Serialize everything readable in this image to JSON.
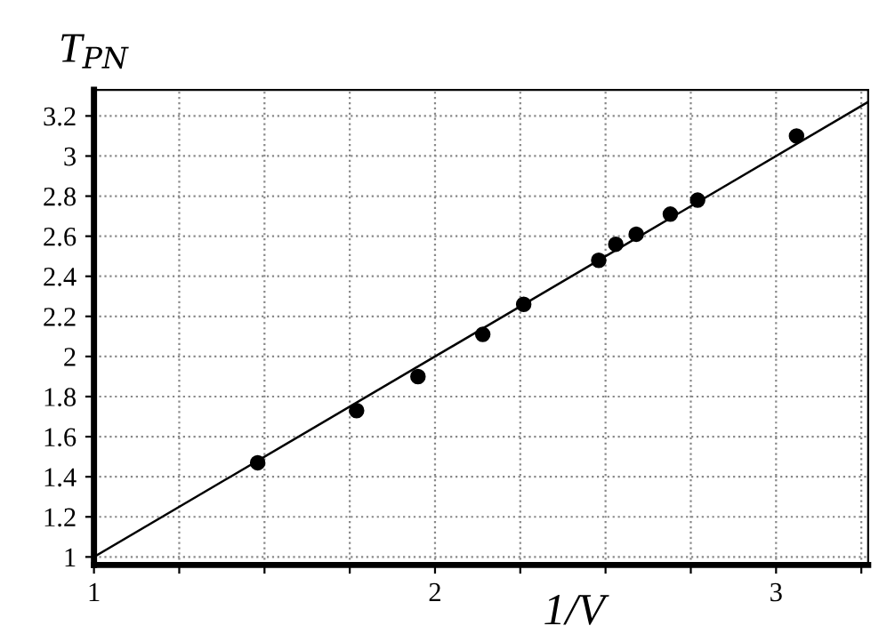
{
  "chart_data": {
    "type": "scatter",
    "xlabel": "1/V",
    "ylabel": "T$_{PN}$",
    "xlim": [
      1,
      3.27
    ],
    "ylim": [
      0.96,
      3.33
    ],
    "xticks": [
      1,
      {
        "value": 1.25,
        "label": null
      },
      {
        "value": 1.5,
        "label": null
      },
      {
        "value": 1.75,
        "label": null
      },
      2,
      {
        "value": 2.25,
        "label": null
      },
      {
        "value": 2.5,
        "label": null
      },
      {
        "value": 2.75,
        "label": null
      },
      3,
      {
        "value": 3.25,
        "label": null
      }
    ],
    "yticks": [
      1,
      1.2,
      1.4,
      1.6,
      1.8,
      2,
      2.2,
      2.4,
      2.6,
      2.8,
      3,
      3.2
    ],
    "grid": true,
    "legend": false,
    "series": [
      {
        "marker": "circle",
        "color": "#000000",
        "x": [
          1.48,
          1.77,
          1.95,
          2.14,
          2.26,
          2.48,
          2.53,
          2.59,
          2.69,
          2.77,
          3.06
        ],
        "values": [
          1.47,
          1.73,
          1.9,
          2.11,
          2.26,
          2.48,
          2.56,
          2.61,
          2.71,
          2.78,
          3.1
        ]
      },
      {
        "type": "line",
        "marker": "none",
        "color": "#000000",
        "line_style": "solid",
        "x": [
          1,
          3.27
        ],
        "values": [
          1,
          3.27
        ]
      }
    ]
  }
}
